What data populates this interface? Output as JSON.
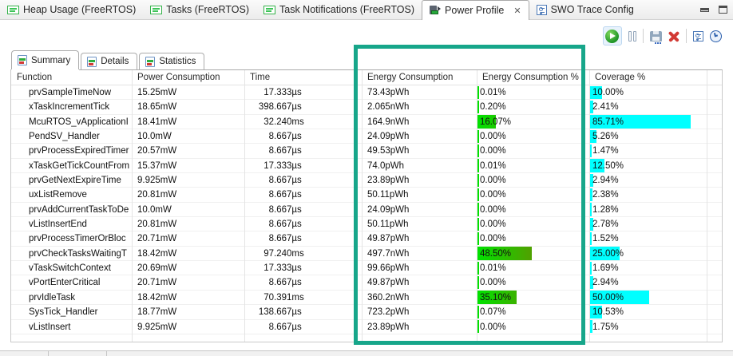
{
  "editor_tabs": [
    {
      "label": "Heap Usage (FreeRTOS)",
      "icon": "rtos-icon",
      "active": false
    },
    {
      "label": "Tasks (FreeRTOS)",
      "icon": "rtos-icon",
      "active": false
    },
    {
      "label": "Task Notifications (FreeRTOS)",
      "icon": "rtos-icon",
      "active": false
    },
    {
      "label": "Power Profile",
      "icon": "power-profile-icon",
      "active": true,
      "close_glyph": "✕"
    },
    {
      "label": "SWO Trace Config",
      "icon": "trace-config-icon",
      "active": false
    }
  ],
  "window_buttons": {
    "minimize": "minimize-icon",
    "maximize": "maximize-icon"
  },
  "toolbar": {
    "icons": [
      "start-profiling",
      "pause-profiling",
      "save-session",
      "clear-session",
      "trace-config",
      "timing"
    ]
  },
  "view_tabs": [
    {
      "label": "Summary",
      "active": true
    },
    {
      "label": "Details",
      "active": false
    },
    {
      "label": "Statistics",
      "active": false
    }
  ],
  "table": {
    "columns": [
      "Function",
      "Power Consumption",
      "Time",
      "Energy Consumption",
      "Energy Consumption %",
      "Coverage %"
    ],
    "rows": [
      {
        "function": "prvSampleTimeNow",
        "power": "15.25mW",
        "time": "17.333µs",
        "energy": "73.43pWh",
        "energy_pct": "0.01%",
        "energy_pct_value": 0.01,
        "coverage_pct": "10.00%",
        "coverage_value": 10.0
      },
      {
        "function": "xTaskIncrementTick",
        "power": "18.65mW",
        "time": "398.667µs",
        "energy": "2.065nWh",
        "energy_pct": "0.20%",
        "energy_pct_value": 0.2,
        "coverage_pct": "2.41%",
        "coverage_value": 2.41
      },
      {
        "function": "McuRTOS_vApplicationI",
        "power": "18.41mW",
        "time": "32.240ms",
        "energy": "164.9nWh",
        "energy_pct": "16.07%",
        "energy_pct_value": 16.07,
        "coverage_pct": "85.71%",
        "coverage_value": 85.71
      },
      {
        "function": "PendSV_Handler",
        "power": "10.0mW",
        "time": "8.667µs",
        "energy": "24.09pWh",
        "energy_pct": "0.00%",
        "energy_pct_value": 0.0,
        "coverage_pct": "5.26%",
        "coverage_value": 5.26
      },
      {
        "function": "prvProcessExpiredTimer",
        "power": "20.57mW",
        "time": "8.667µs",
        "energy": "49.53pWh",
        "energy_pct": "0.00%",
        "energy_pct_value": 0.0,
        "coverage_pct": "1.47%",
        "coverage_value": 1.47
      },
      {
        "function": "xTaskGetTickCountFrom",
        "power": "15.37mW",
        "time": "17.333µs",
        "energy": "74.0pWh",
        "energy_pct": "0.01%",
        "energy_pct_value": 0.01,
        "coverage_pct": "12.50%",
        "coverage_value": 12.5
      },
      {
        "function": "prvGetNextExpireTime",
        "power": "9.925mW",
        "time": "8.667µs",
        "energy": "23.89pWh",
        "energy_pct": "0.00%",
        "energy_pct_value": 0.0,
        "coverage_pct": "2.94%",
        "coverage_value": 2.94
      },
      {
        "function": "uxListRemove",
        "power": "20.81mW",
        "time": "8.667µs",
        "energy": "50.11pWh",
        "energy_pct": "0.00%",
        "energy_pct_value": 0.0,
        "coverage_pct": "2.38%",
        "coverage_value": 2.38
      },
      {
        "function": "prvAddCurrentTaskToDe",
        "power": "10.0mW",
        "time": "8.667µs",
        "energy": "24.09pWh",
        "energy_pct": "0.00%",
        "energy_pct_value": 0.0,
        "coverage_pct": "1.28%",
        "coverage_value": 1.28
      },
      {
        "function": "vListInsertEnd",
        "power": "20.81mW",
        "time": "8.667µs",
        "energy": "50.11pWh",
        "energy_pct": "0.00%",
        "energy_pct_value": 0.0,
        "coverage_pct": "2.78%",
        "coverage_value": 2.78
      },
      {
        "function": "prvProcessTimerOrBloc",
        "power": "20.71mW",
        "time": "8.667µs",
        "energy": "49.87pWh",
        "energy_pct": "0.00%",
        "energy_pct_value": 0.0,
        "coverage_pct": "1.52%",
        "coverage_value": 1.52
      },
      {
        "function": "prvCheckTasksWaitingT",
        "power": "18.42mW",
        "time": "97.240ms",
        "energy": "497.7nWh",
        "energy_pct": "48.50%",
        "energy_pct_value": 48.5,
        "coverage_pct": "25.00%",
        "coverage_value": 25.0
      },
      {
        "function": "vTaskSwitchContext",
        "power": "20.69mW",
        "time": "17.333µs",
        "energy": "99.66pWh",
        "energy_pct": "0.01%",
        "energy_pct_value": 0.01,
        "coverage_pct": "1.69%",
        "coverage_value": 1.69
      },
      {
        "function": "vPortEnterCritical",
        "power": "20.71mW",
        "time": "8.667µs",
        "energy": "49.87pWh",
        "energy_pct": "0.00%",
        "energy_pct_value": 0.0,
        "coverage_pct": "2.94%",
        "coverage_value": 2.94
      },
      {
        "function": "prvIdleTask",
        "power": "18.42mW",
        "time": "70.391ms",
        "energy": "360.2nWh",
        "energy_pct": "35.10%",
        "energy_pct_value": 35.1,
        "coverage_pct": "50.00%",
        "coverage_value": 50.0
      },
      {
        "function": "SysTick_Handler",
        "power": "18.77mW",
        "time": "138.667µs",
        "energy": "723.2pWh",
        "energy_pct": "0.07%",
        "energy_pct_value": 0.07,
        "coverage_pct": "10.53%",
        "coverage_value": 10.53
      },
      {
        "function": "vListInsert",
        "power": "9.925mW",
        "time": "8.667µs",
        "energy": "23.89pWh",
        "energy_pct": "0.00%",
        "energy_pct_value": 0.0,
        "coverage_pct": "1.75%",
        "coverage_value": 1.75
      }
    ]
  },
  "colors": {
    "annotation_teal": "#17a68a",
    "coverage_bar": "#00ffff",
    "energy_bar_start": "#00e200",
    "energy_bar_end": "#7d8600"
  }
}
